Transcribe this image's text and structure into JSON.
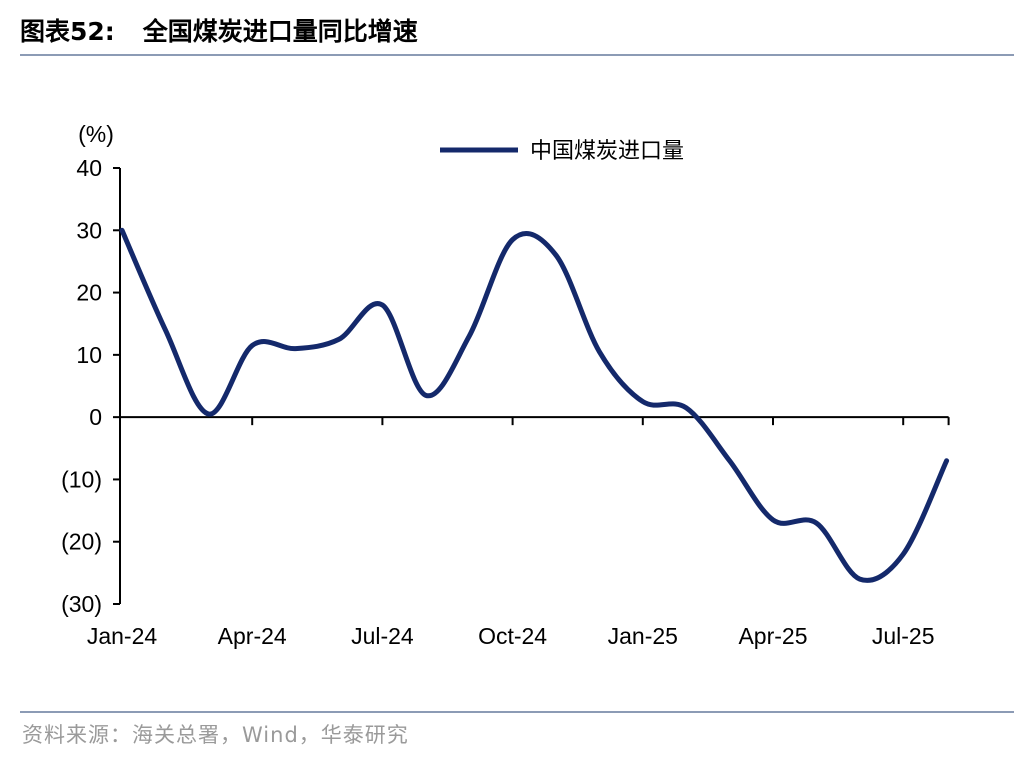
{
  "header": {
    "figure_prefix": "图表52:",
    "title": "全国煤炭进口量同比增速"
  },
  "footer": {
    "source": "资料来源：海关总署，Wind，华泰研究"
  },
  "colors": {
    "series_line": "#14296b",
    "axis": "#000000",
    "rule": "#8c9bb5"
  },
  "chart_data": {
    "type": "line",
    "ylabel": "(%)",
    "ylim": [
      -30,
      40
    ],
    "yticks": [
      40,
      30,
      20,
      10,
      0,
      -10,
      -20,
      -30
    ],
    "ytick_labels": [
      "40",
      "30",
      "20",
      "10",
      "0",
      "(10)",
      "(20)",
      "(30)"
    ],
    "x_tick_labels": [
      "Jan-24",
      "Apr-24",
      "Jul-24",
      "Oct-24",
      "Jan-25",
      "Apr-25",
      "Jul-25"
    ],
    "legend_position": "top-center",
    "grid": false,
    "series": [
      {
        "name": "中国煤炭进口量",
        "x": [
          "Jan-24",
          "Feb-24",
          "Mar-24",
          "Apr-24",
          "May-24",
          "Jun-24",
          "Jul-24",
          "Aug-24",
          "Sep-24",
          "Oct-24",
          "Nov-24",
          "Dec-24",
          "Jan-25",
          "Feb-25",
          "Mar-25",
          "Apr-25",
          "May-25",
          "Jun-25",
          "Jul-25",
          "Aug-25"
        ],
        "values": [
          30,
          14,
          0.5,
          11.5,
          11,
          12.5,
          18,
          3.5,
          13,
          28.5,
          26,
          10.5,
          2.5,
          1.5,
          -7,
          -16.5,
          -17,
          -26,
          -22,
          -7
        ]
      }
    ]
  }
}
